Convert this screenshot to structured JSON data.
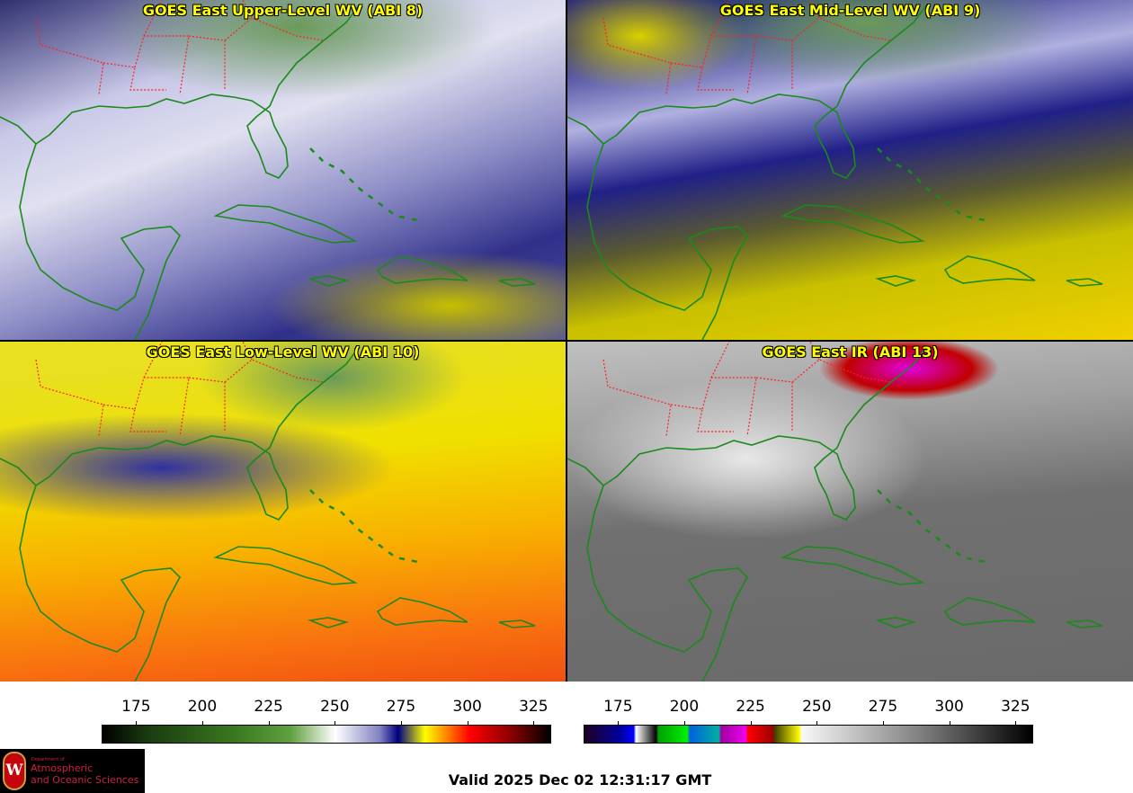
{
  "panels": [
    {
      "title": "GOES East Upper-Level WV (ABI 8)"
    },
    {
      "title": "GOES East Mid-Level WV (ABI 9)"
    },
    {
      "title": "GOES East Low-Level WV (ABI 10)"
    },
    {
      "title": "GOES East IR (ABI 13)"
    }
  ],
  "colorbars": [
    {
      "name": "water-vapor",
      "ticks": [
        "175",
        "200",
        "225",
        "250",
        "275",
        "300",
        "325"
      ],
      "range": [
        162,
        331
      ]
    },
    {
      "name": "infrared",
      "ticks": [
        "175",
        "200",
        "225",
        "250",
        "275",
        "300",
        "325"
      ],
      "range": [
        162,
        331
      ]
    }
  ],
  "logo": {
    "line1": "Department of",
    "line2": "Atmospheric",
    "line3": "and Oceanic Sciences",
    "crest": "W"
  },
  "valid_time": "Valid 2025 Dec 02 12:31:17 GMT",
  "colors": {
    "title": "#ffff00",
    "coast": "#1a8a1a",
    "borders": "#ff2020"
  }
}
